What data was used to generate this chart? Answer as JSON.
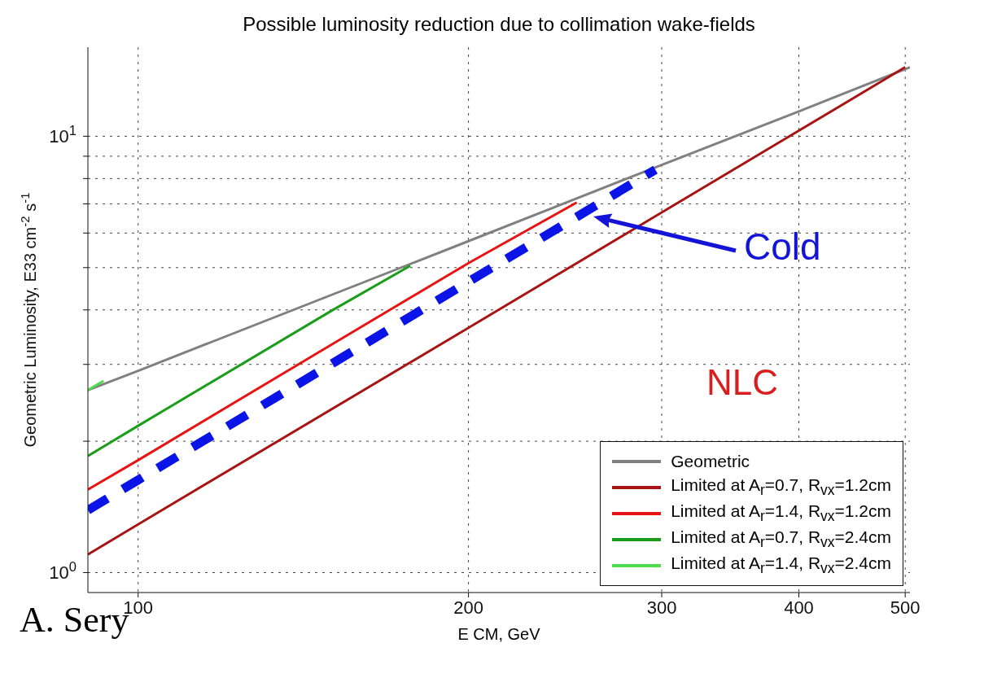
{
  "chart_data": {
    "type": "line",
    "title": "Possible luminosity reduction due to collimation wake-fields",
    "xlabel": "E CM, GeV",
    "ylabel": "Geometric Luminosity, E33 cm$^{-2}$ s$^{-1}$",
    "log": "xy",
    "grid": true,
    "legend": "bottom right",
    "marker": "none",
    "xlim": [
      90,
      505
    ],
    "xticks": [
      100,
      200,
      300,
      400,
      500
    ],
    "ylim": [
      0.9,
      16
    ],
    "yticks": [
      {
        "value": 1,
        "label": "10$^{0}$"
      },
      {
        "value": 2,
        "label": null
      },
      {
        "value": 3,
        "label": null
      },
      {
        "value": 4,
        "label": null
      },
      {
        "value": 5,
        "label": null
      },
      {
        "value": 6,
        "label": null
      },
      {
        "value": 7,
        "label": null
      },
      {
        "value": 8,
        "label": null
      },
      {
        "value": 9,
        "label": null
      },
      {
        "value": 10,
        "label": "10$^{1}$"
      }
    ],
    "series": [
      {
        "name": "Geometric",
        "color": "#808080",
        "x": [
          90,
          100,
          200,
          300,
          400,
          505
        ],
        "values": [
          2.62,
          2.9,
          5.75,
          8.6,
          11.4,
          14.4
        ]
      },
      {
        "name": "Limited at A$_{r}$=0.7, R$_{vx}$=1.2cm",
        "color": "#a81414",
        "x": [
          90,
          100,
          200,
          300,
          400,
          500
        ],
        "values": [
          1.1,
          1.29,
          3.64,
          6.69,
          10.3,
          14.4
        ]
      },
      {
        "name": "Limited at A$_{r}$=1.4, R$_{vx}$=1.2cm",
        "color": "#e81414",
        "x": [
          90,
          100,
          150,
          200,
          251
        ],
        "values": [
          1.55,
          1.81,
          3.33,
          5.12,
          7.05
        ]
      },
      {
        "name": "Limited at A$_{r}$=0.7, R$_{vx}$=2.4cm",
        "color": "#1a9e1a",
        "x": [
          90,
          100,
          150,
          177
        ],
        "values": [
          1.85,
          2.17,
          3.98,
          5.05
        ]
      },
      {
        "name": "Limited at A$_{r}$=1.4, R$_{vx}$=2.4cm",
        "color": "#4cdc4c",
        "x": [
          90,
          93
        ],
        "values": [
          2.62,
          2.75
        ]
      },
      {
        "color": "#0a14e6",
        "line_style": "dashed",
        "x": [
          90,
          100,
          200,
          296
        ],
        "values": [
          1.39,
          1.63,
          4.64,
          8.38
        ]
      }
    ],
    "annotations": [
      "Cold",
      "NLC",
      "A. Sery"
    ]
  }
}
